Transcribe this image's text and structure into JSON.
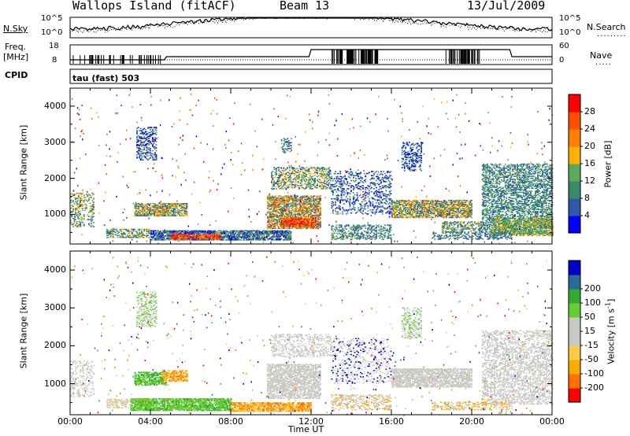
{
  "header": {
    "site": "Wallops Island (fitACF)",
    "beam": "Beam 13",
    "date": "13/Jul/2009"
  },
  "panels": {
    "nsky_label": "N.Sky",
    "nsearch_label": "N.Search",
    "freq_label_1": "Freq.",
    "freq_label_2": "[MHz]",
    "nave_label": "Nave",
    "cpid_label": "CPID",
    "cpid_value": "tau (fast) 503",
    "noise_left_ticks": [
      "10^5",
      "10^0"
    ],
    "noise_right_ticks": [
      "10^5",
      "10^0"
    ],
    "freq_left_ticks": [
      "18",
      "8"
    ],
    "nave_right_ticks": [
      "60",
      "0"
    ]
  },
  "colors": {
    "power_scale": [
      "#0000ff",
      "#2d5aa8",
      "#3a8a6a",
      "#5aaa5a",
      "#ffb000",
      "#ff8000",
      "#ff5000",
      "#ff0000"
    ],
    "velocity_scale": [
      "#ff0000",
      "#ff7000",
      "#ffaa00",
      "#ffcc44",
      "#c8c8c4",
      "#c8c8c4",
      "#66cc33",
      "#33aa33",
      "#2a6a9a",
      "#0000cc"
    ]
  },
  "chart_data": [
    {
      "type": "heatmap",
      "name": "power",
      "ylabel": "Slant Range [km]",
      "yticks": [
        "1000",
        "2000",
        "3000",
        "4000"
      ],
      "yvalues": [
        1000,
        2000,
        3000,
        4000
      ],
      "ylim": [
        180,
        4500
      ],
      "xlim": [
        0,
        24
      ],
      "colorbar_label": "Power [dB]",
      "colorbar_ticks": [
        "4",
        "8",
        "12",
        "16",
        "20",
        "24",
        "28"
      ],
      "colorbar_values": [
        4,
        8,
        12,
        16,
        20,
        24,
        28
      ],
      "colorbar_range": [
        0,
        32
      ]
    },
    {
      "type": "heatmap",
      "name": "velocity",
      "ylabel": "Slant Range [km]",
      "yticks": [
        "1000",
        "2000",
        "3000",
        "4000"
      ],
      "yvalues": [
        1000,
        2000,
        3000,
        4000
      ],
      "ylim": [
        180,
        4500
      ],
      "xlim": [
        0,
        24
      ],
      "colorbar_label": "Velocity [m s^-1]",
      "colorbar_ticks": [
        "-200",
        "-100",
        "-50",
        "-15",
        "15",
        "50",
        "100",
        "200"
      ],
      "xlabel": "Time UT",
      "xticks": [
        "00:00",
        "04:00",
        "08:00",
        "12:00",
        "16:00",
        "20:00",
        "00:00"
      ],
      "xvalues": [
        0,
        4,
        8,
        12,
        16,
        20,
        24
      ]
    }
  ]
}
